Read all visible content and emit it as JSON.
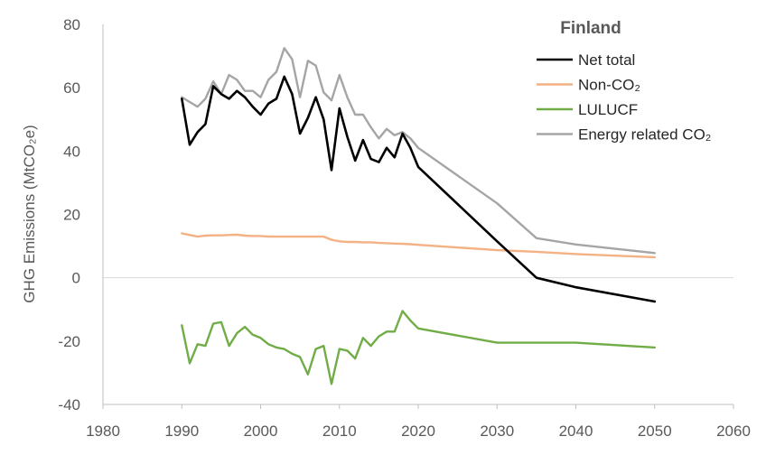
{
  "chart_data": {
    "type": "line",
    "title": "",
    "xlabel": "",
    "ylabel": "GHG Emissions (MtCO₂e)",
    "xlim": [
      1980,
      2060
    ],
    "ylim": [
      -40,
      80
    ],
    "x_ticks": [
      1980,
      1990,
      2000,
      2010,
      2020,
      2030,
      2040,
      2050,
      2060
    ],
    "y_ticks": [
      -40,
      -20,
      0,
      20,
      40,
      60,
      80
    ],
    "grid": false,
    "legend": {
      "title": "Finland",
      "placement": "top-right"
    },
    "series": [
      {
        "name": "Net total",
        "color": "#000000",
        "points": [
          [
            1990,
            56.5
          ],
          [
            1991,
            42
          ],
          [
            1992,
            46
          ],
          [
            1993,
            48.5
          ],
          [
            1994,
            60.5
          ],
          [
            1995,
            58
          ],
          [
            1996,
            56.5
          ],
          [
            1997,
            59
          ],
          [
            1998,
            57
          ],
          [
            1999,
            54
          ],
          [
            2000,
            51.5
          ],
          [
            2001,
            55
          ],
          [
            2002,
            56.5
          ],
          [
            2003,
            63.5
          ],
          [
            2004,
            58
          ],
          [
            2005,
            45.5
          ],
          [
            2006,
            50.5
          ],
          [
            2007,
            57
          ],
          [
            2008,
            50
          ],
          [
            2009,
            34
          ],
          [
            2010,
            53.5
          ],
          [
            2011,
            44.5
          ],
          [
            2012,
            37
          ],
          [
            2013,
            43.5
          ],
          [
            2014,
            37.5
          ],
          [
            2015,
            36.5
          ],
          [
            2016,
            41
          ],
          [
            2017,
            38
          ],
          [
            2018,
            45.5
          ],
          [
            2019,
            41
          ],
          [
            2020,
            35
          ],
          [
            2030,
            11.5
          ],
          [
            2035,
            0
          ],
          [
            2040,
            -3
          ],
          [
            2050,
            -7.5
          ]
        ]
      },
      {
        "name": "Non-CO₂",
        "color": "#F4B183",
        "points": [
          [
            1990,
            14
          ],
          [
            1991,
            13.5
          ],
          [
            1992,
            13
          ],
          [
            1993,
            13.3
          ],
          [
            1994,
            13.4
          ],
          [
            1995,
            13.4
          ],
          [
            1996,
            13.5
          ],
          [
            1997,
            13.6
          ],
          [
            1998,
            13.3
          ],
          [
            1999,
            13.2
          ],
          [
            2000,
            13.2
          ],
          [
            2001,
            13
          ],
          [
            2002,
            13
          ],
          [
            2003,
            13
          ],
          [
            2004,
            13
          ],
          [
            2005,
            13
          ],
          [
            2006,
            13
          ],
          [
            2007,
            13
          ],
          [
            2008,
            13
          ],
          [
            2009,
            12
          ],
          [
            2010,
            11.5
          ],
          [
            2011,
            11.3
          ],
          [
            2012,
            11.3
          ],
          [
            2013,
            11.2
          ],
          [
            2014,
            11.2
          ],
          [
            2015,
            11
          ],
          [
            2016,
            10.9
          ],
          [
            2017,
            10.8
          ],
          [
            2018,
            10.7
          ],
          [
            2019,
            10.6
          ],
          [
            2020,
            10.4
          ],
          [
            2030,
            8.7
          ],
          [
            2035,
            8.2
          ],
          [
            2040,
            7.5
          ],
          [
            2050,
            6.5
          ]
        ]
      },
      {
        "name": "LULUCF",
        "color": "#70AD47",
        "points": [
          [
            1990,
            -15
          ],
          [
            1991,
            -27
          ],
          [
            1992,
            -21
          ],
          [
            1993,
            -21.5
          ],
          [
            1994,
            -14.5
          ],
          [
            1995,
            -14
          ],
          [
            1996,
            -21.5
          ],
          [
            1997,
            -17.5
          ],
          [
            1998,
            -15.5
          ],
          [
            1999,
            -18
          ],
          [
            2000,
            -19
          ],
          [
            2001,
            -21
          ],
          [
            2002,
            -22
          ],
          [
            2003,
            -22.5
          ],
          [
            2004,
            -24
          ],
          [
            2005,
            -25
          ],
          [
            2006,
            -30.5
          ],
          [
            2007,
            -22.5
          ],
          [
            2008,
            -21.5
          ],
          [
            2009,
            -33.5
          ],
          [
            2010,
            -22.5
          ],
          [
            2011,
            -23
          ],
          [
            2012,
            -25.5
          ],
          [
            2013,
            -19
          ],
          [
            2014,
            -21.5
          ],
          [
            2015,
            -18.5
          ],
          [
            2016,
            -17
          ],
          [
            2017,
            -17
          ],
          [
            2018,
            -10.5
          ],
          [
            2019,
            -13.5
          ],
          [
            2020,
            -16
          ],
          [
            2030,
            -20.5
          ],
          [
            2040,
            -20.5
          ],
          [
            2050,
            -22
          ]
        ]
      },
      {
        "name": "Energy related CO₂",
        "color": "#A5A5A5",
        "points": [
          [
            1990,
            57
          ],
          [
            1991,
            55.5
          ],
          [
            1992,
            54
          ],
          [
            1993,
            56.5
          ],
          [
            1994,
            62
          ],
          [
            1995,
            58
          ],
          [
            1996,
            64
          ],
          [
            1997,
            62.5
          ],
          [
            1998,
            59
          ],
          [
            1999,
            59
          ],
          [
            2000,
            57
          ],
          [
            2001,
            62.5
          ],
          [
            2002,
            65
          ],
          [
            2003,
            72.5
          ],
          [
            2004,
            69
          ],
          [
            2005,
            57
          ],
          [
            2006,
            68.5
          ],
          [
            2007,
            67
          ],
          [
            2008,
            58.5
          ],
          [
            2009,
            56
          ],
          [
            2010,
            64
          ],
          [
            2011,
            57
          ],
          [
            2012,
            51.5
          ],
          [
            2013,
            51.5
          ],
          [
            2014,
            47.5
          ],
          [
            2015,
            44
          ],
          [
            2016,
            47
          ],
          [
            2017,
            45
          ],
          [
            2018,
            46
          ],
          [
            2019,
            44
          ],
          [
            2020,
            41
          ],
          [
            2030,
            23.5
          ],
          [
            2035,
            12.5
          ],
          [
            2040,
            10.5
          ],
          [
            2050,
            7.8
          ]
        ]
      }
    ]
  }
}
